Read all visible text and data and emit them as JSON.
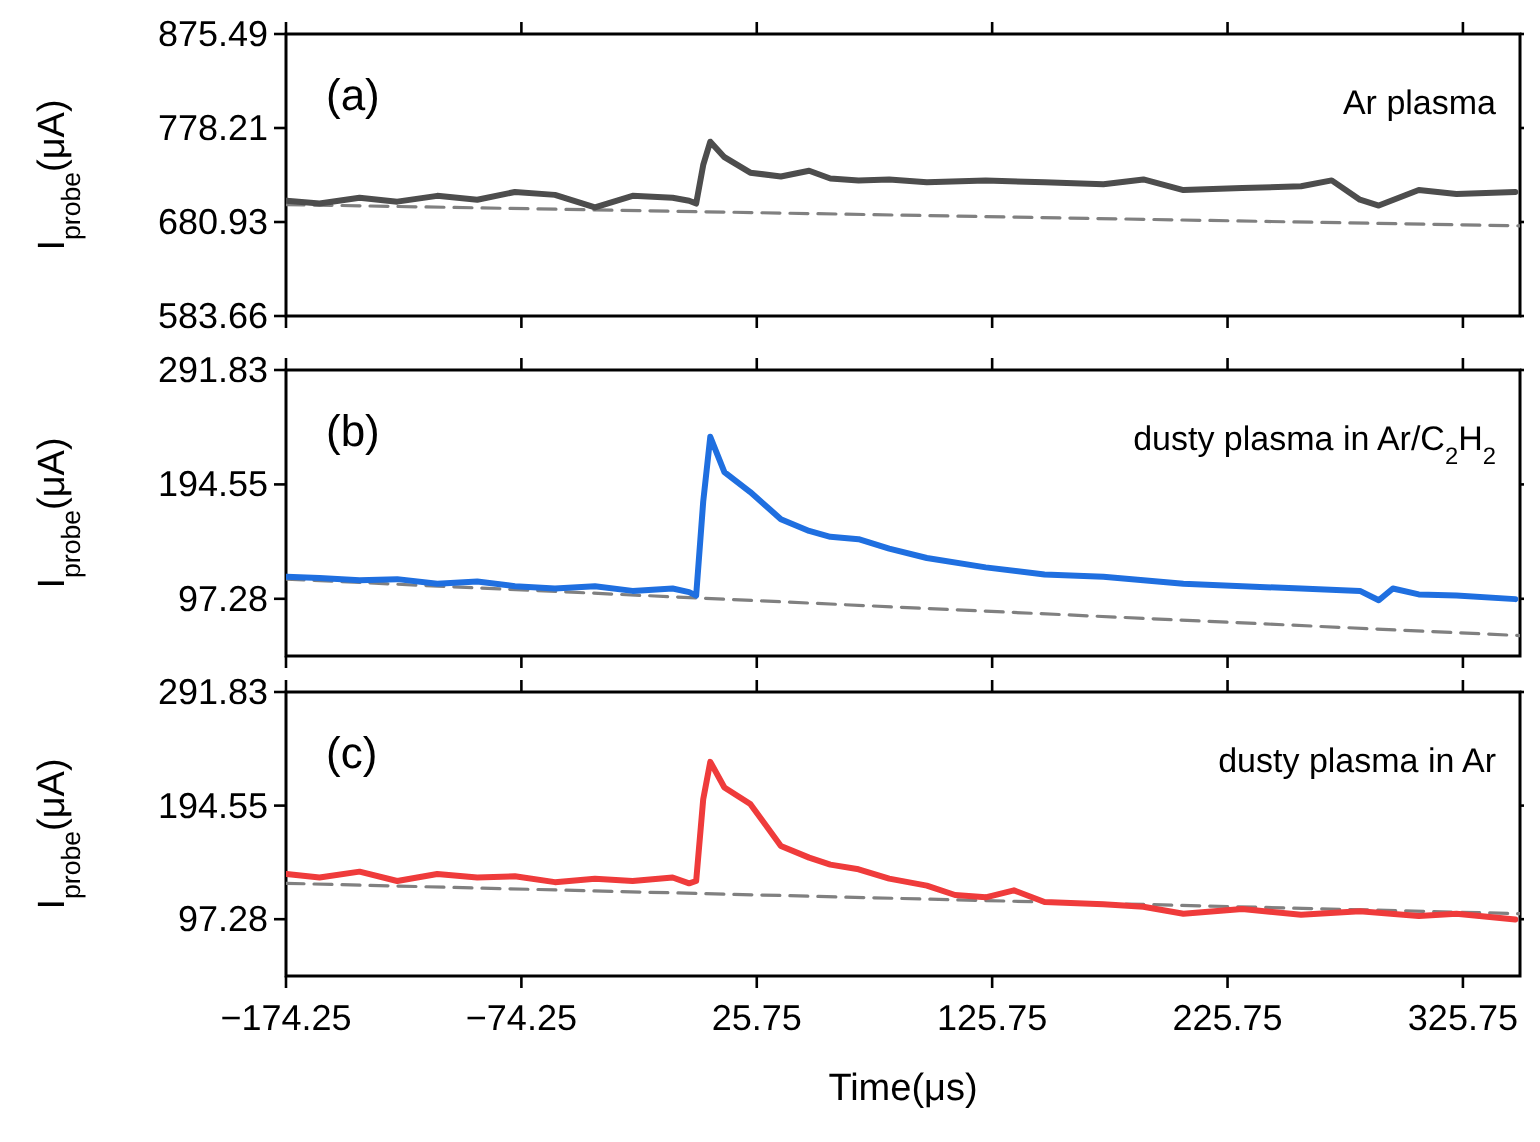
{
  "chart_data": [
    {
      "type": "line",
      "ylabel": "I$_{probe}$(μA)",
      "annotations": [
        "(a)",
        "Ar plasma"
      ],
      "xlim": [
        -174.25,
        350
      ],
      "xticks": [
        -174.25,
        -74.25,
        25.75,
        125.75,
        225.75,
        325.75
      ],
      "ylim": [
        583.66,
        875.49
      ],
      "yticks": [
        583.66,
        680.93,
        778.21,
        875.49
      ],
      "tick_labels": "y",
      "line_style": "solid",
      "series": [
        {
          "color": "#4d4d4d",
          "x": [
            -174,
            -160,
            -143,
            -127,
            -110,
            -93,
            -77,
            -60,
            -43,
            -27,
            -10,
            -3,
            0,
            3,
            6,
            12,
            23,
            36,
            48,
            57,
            69,
            82,
            98,
            123,
            148,
            173,
            190,
            207,
            232,
            257,
            270,
            282,
            290,
            307,
            323,
            348
          ],
          "values": [
            703,
            700,
            706,
            702,
            708,
            704,
            712,
            709,
            696,
            708,
            706,
            703,
            700,
            740,
            764,
            748,
            732,
            728,
            734,
            726,
            724,
            725,
            722,
            724,
            722,
            720,
            725,
            714,
            716,
            718,
            724,
            704,
            698,
            714,
            710,
            712
          ]
        },
        {
          "color": "#808080",
          "line_style": "dashed",
          "x": [
            -174.25,
            350
          ],
          "values": [
            699,
            677
          ]
        }
      ]
    },
    {
      "type": "line",
      "ylabel": "I$_{probe}$(μA)",
      "annotations": [
        "(b)",
        "dusty plasma in Ar/C$_{2}$H$_{2}$"
      ],
      "xlim": [
        -174.25,
        350
      ],
      "xticks": [
        -174.25,
        -74.25,
        25.75,
        125.75,
        225.75,
        325.75
      ],
      "ylim": [
        48.64,
        291.83
      ],
      "yticks": [
        97.28,
        194.55,
        291.83
      ],
      "tick_labels": "y",
      "line_style": "solid",
      "series": [
        {
          "color": "#1f6fe0",
          "x": [
            -174,
            -160,
            -143,
            -127,
            -110,
            -93,
            -77,
            -60,
            -43,
            -27,
            -10,
            -3,
            0,
            3,
            6,
            12,
            23,
            36,
            48,
            57,
            69,
            82,
            98,
            123,
            148,
            173,
            207,
            232,
            257,
            282,
            290,
            296,
            307,
            323,
            348
          ],
          "values": [
            116,
            115,
            113,
            114,
            110,
            112,
            108,
            106,
            108,
            104,
            106,
            103,
            100,
            180,
            235,
            205,
            188,
            165,
            155,
            150,
            148,
            140,
            132,
            124,
            118,
            116,
            110,
            108,
            106,
            104,
            96,
            106,
            101,
            100,
            97
          ]
        },
        {
          "color": "#808080",
          "line_style": "dashed",
          "x": [
            -174.25,
            350
          ],
          "values": [
            114,
            66
          ]
        }
      ]
    },
    {
      "type": "line",
      "ylabel": "I$_{probe}$(μA)",
      "xlabel": "Time(μs)",
      "annotations": [
        "(c)",
        "dusty plasma in Ar"
      ],
      "xlim": [
        -174.25,
        350
      ],
      "xticks": [
        -174.25,
        -74.25,
        25.75,
        125.75,
        225.75,
        325.75
      ],
      "ylim": [
        48.64,
        291.83
      ],
      "yticks": [
        97.28,
        194.55,
        291.83
      ],
      "line_style": "solid",
      "series": [
        {
          "color": "#ef3b3b",
          "x": [
            -174,
            -160,
            -143,
            -127,
            -110,
            -93,
            -77,
            -60,
            -43,
            -27,
            -10,
            -3,
            0,
            3,
            6,
            12,
            23,
            36,
            48,
            57,
            69,
            82,
            98,
            110,
            123,
            135,
            148,
            173,
            190,
            207,
            232,
            257,
            282,
            307,
            323,
            348
          ],
          "values": [
            136,
            133,
            138,
            130,
            136,
            133,
            134,
            129,
            132,
            130,
            133,
            128,
            130,
            200,
            232,
            210,
            196,
            160,
            150,
            144,
            140,
            132,
            126,
            118,
            116,
            122,
            112,
            110,
            108,
            102,
            106,
            101,
            104,
            100,
            102,
            97
          ]
        },
        {
          "color": "#808080",
          "line_style": "dashed",
          "x": [
            -174.25,
            350
          ],
          "values": [
            128,
            102
          ]
        }
      ]
    }
  ]
}
